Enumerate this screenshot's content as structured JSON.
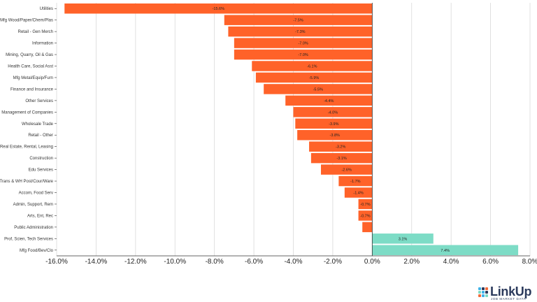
{
  "chart_data": {
    "type": "bar",
    "orientation": "horizontal",
    "categories": [
      "Utilities",
      "Mfg Wood/Paper/Chem/Plas",
      "Retail - Gen Merch",
      "Information",
      "Mining, Quarry, Oil & Gas",
      "Health Care, Social Asst",
      "Mfg Metal/Equip/Furn",
      "Finance and Insurance",
      "Other Services",
      "Management of Companies",
      "Wholesale Trade",
      "Retail - Other",
      "Real Estate, Rental, Leasing",
      "Construction",
      "Edu Services",
      "Trans & WH Post/Cour/Ware",
      "Accom, Food Serv",
      "Admin, Support, Rem",
      "Arts, Ent, Rec",
      "Public Administration",
      "Prof, Scien, Tech Services",
      "Mfg Food/Bev/Clo"
    ],
    "values": [
      -15.6,
      -7.5,
      -7.3,
      -7.0,
      -7.0,
      -6.1,
      -5.9,
      -5.5,
      -4.4,
      -4.0,
      -3.9,
      -3.8,
      -3.2,
      -3.1,
      -2.6,
      -1.7,
      -1.4,
      -0.7,
      -0.7,
      -0.5,
      3.1,
      7.4
    ],
    "data_labels": [
      "-15.6%",
      "-7.5%",
      "-7.3%",
      "-7.0%",
      "-7.0%",
      "-6.1%",
      "-5.9%",
      "-5.5%",
      "-4.4%",
      "-4.0%",
      "-3.9%",
      "-3.8%",
      "-3.2%",
      "-3.1%",
      "-2.6%",
      "-1.7%",
      "-1.4%",
      "-0.7%",
      "-0.7%",
      "",
      "3.1%",
      "7.4%"
    ],
    "xlim": [
      -16.0,
      8.0
    ],
    "xticks": [
      -16,
      -14,
      -12,
      -10,
      -8,
      -6,
      -4,
      -2,
      0,
      2,
      4,
      6,
      8
    ],
    "xtick_labels": [
      "-16.0%",
      "-14.0%",
      "-12.0%",
      "-10.0%",
      "-8.0%",
      "-6.0%",
      "-4.0%",
      "-2.0%",
      "0.0%",
      "2.0%",
      "4.0%",
      "6.0%",
      "8.0%"
    ],
    "grid": true,
    "colors": {
      "negative": "#ff6229",
      "positive": "#7ddcc6",
      "grid": "#d9d9d9",
      "axis": "#333333"
    }
  },
  "logo": {
    "word": "LinkUp",
    "tagline": "JOB MARKET DATA",
    "dot_colors": [
      "#3fb3e8",
      "#2b3a5c",
      "#f26b3a",
      "#7ddcc6",
      "#3fb3e8",
      "#2b3a5c",
      "#f26b3a",
      "#3fb3e8",
      "#7ddcc6"
    ]
  }
}
